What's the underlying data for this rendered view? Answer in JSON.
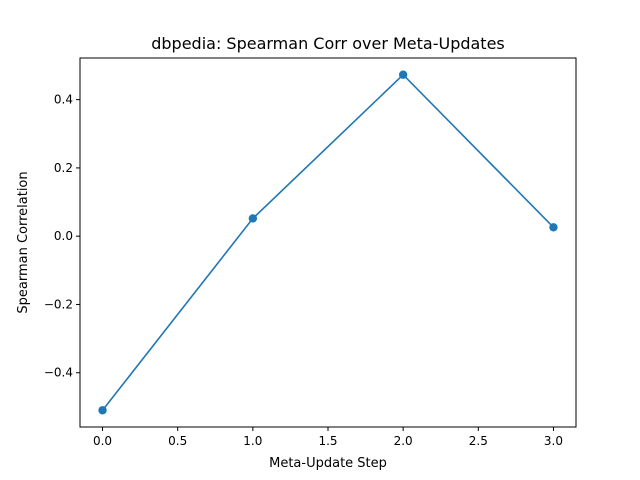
{
  "chart_data": {
    "type": "line",
    "title": "dbpedia: Spearman Corr over Meta-Updates",
    "xlabel": "Meta-Update Step",
    "ylabel": "Spearman Correlation",
    "x": [
      0,
      1,
      2,
      3
    ],
    "series": [
      {
        "values": [
          -0.51,
          0.052,
          0.473,
          0.026
        ],
        "color": "#1f77b4"
      }
    ],
    "xlim": [
      -0.15,
      3.15
    ],
    "ylim": [
      -0.559,
      0.522
    ],
    "xticks": [
      0.0,
      0.5,
      1.0,
      1.5,
      2.0,
      2.5,
      3.0
    ],
    "xtick_labels": [
      "0.0",
      "0.5",
      "1.0",
      "1.5",
      "2.0",
      "2.5",
      "3.0"
    ],
    "yticks": [
      -0.4,
      -0.2,
      0.0,
      0.2,
      0.4
    ],
    "ytick_labels": [
      "−0.4",
      "−0.2",
      "0.0",
      "0.2",
      "0.4"
    ],
    "grid": false,
    "legend": "none",
    "marker": "circle"
  }
}
